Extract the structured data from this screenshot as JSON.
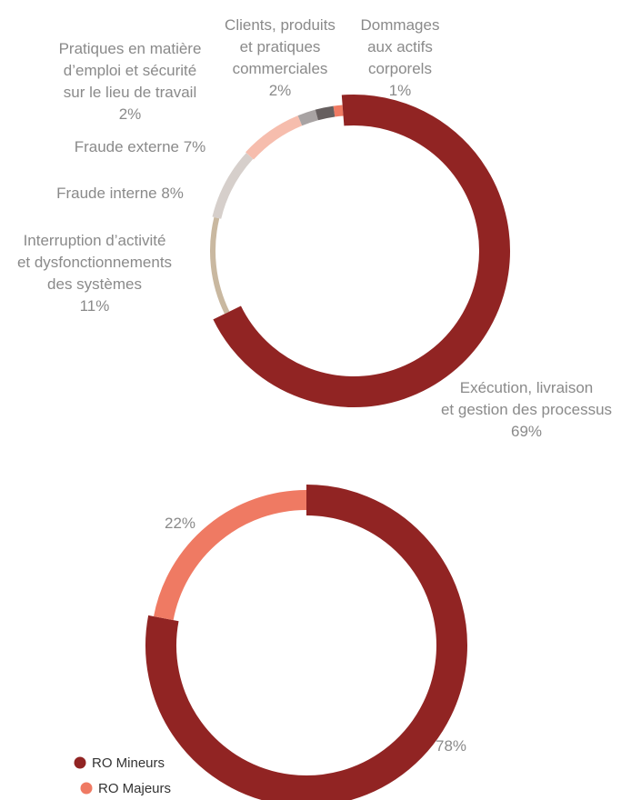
{
  "chart_data": [
    {
      "type": "pie",
      "donut": true,
      "categories": [
        "Exécution, livraison et gestion des processus",
        "Interruption d’activité et dysfonctionnements des systèmes",
        "Fraude interne",
        "Fraude externe",
        "Pratiques en matière d’emploi et sécurité sur le lieu de travail",
        "Clients, produits et pratiques commerciales",
        "Dommages aux actifs corporels"
      ],
      "values": [
        69,
        11,
        8,
        7,
        2,
        2,
        1
      ],
      "colors": [
        "#912423",
        "#c9b8a0",
        "#d6cfcb",
        "#f6bdad",
        "#a8a3a3",
        "#665f5f",
        "#ef7a63"
      ],
      "labels": [
        [
          "Exécution, livraison",
          "et gestion des processus",
          "69%"
        ],
        [
          "Interruption d’activité",
          "et dysfonctionnements",
          "des systèmes",
          "11%"
        ],
        [
          "Fraude interne 8%"
        ],
        [
          "Fraude externe 7%"
        ],
        [
          "Pratiques en matière",
          "d’emploi et sécurité",
          "sur le lieu de travail",
          "2%"
        ],
        [
          "Clients, produits",
          "et pratiques",
          "commerciales",
          "2%"
        ],
        [
          "Dommages",
          "aux actifs",
          "corporels",
          "1%"
        ]
      ]
    },
    {
      "type": "pie",
      "donut": true,
      "categories": [
        "RO Mineurs",
        "RO Majeurs"
      ],
      "values": [
        78,
        22
      ],
      "colors": [
        "#912423",
        "#ef7a63"
      ],
      "labels": [
        [
          "78%"
        ],
        [
          "22%"
        ]
      ],
      "legend": {
        "position": "bottom-left",
        "items": [
          {
            "label": "RO Mineurs",
            "color": "#912423"
          },
          {
            "label": "RO Majeurs",
            "color": "#ef7a63"
          }
        ]
      }
    }
  ]
}
